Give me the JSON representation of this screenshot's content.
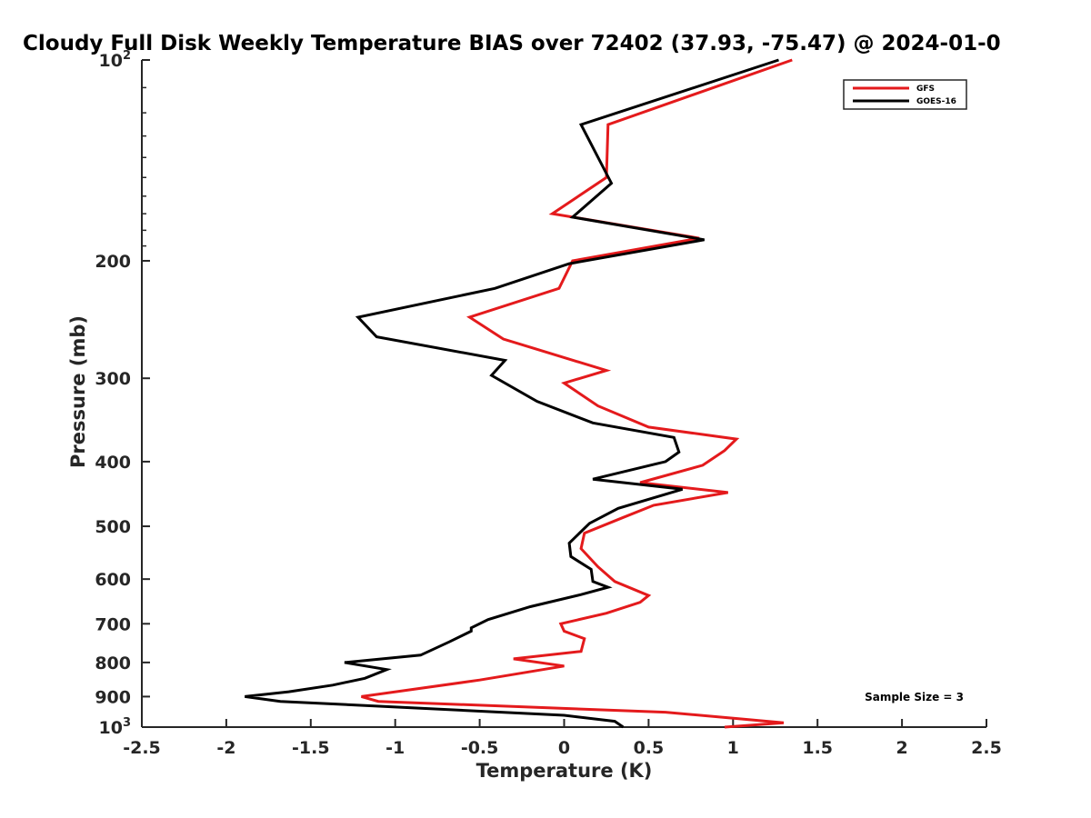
{
  "chart_data": {
    "type": "line",
    "title": "Cloudy Full Disk Weekly Temperature BIAS over 72402 (37.93, -75.47) @ 2024-01-0",
    "xlabel": "Temperature (K)",
    "ylabel": "Pressure (mb)",
    "xlim": [
      -2.5,
      2.5
    ],
    "ylim": [
      100,
      1000
    ],
    "yscale": "log",
    "yreversed": true,
    "grid": false,
    "legend_position": "top-right",
    "x_ticks": [
      {
        "value": -2.5,
        "label": "-2.5"
      },
      {
        "value": -2,
        "label": "-2"
      },
      {
        "value": -1.5,
        "label": "-1.5"
      },
      {
        "value": -1,
        "label": "-1"
      },
      {
        "value": -0.5,
        "label": "-0.5"
      },
      {
        "value": 0,
        "label": "0"
      },
      {
        "value": 0.5,
        "label": "0.5"
      },
      {
        "value": 1,
        "label": "1"
      },
      {
        "value": 1.5,
        "label": "1.5"
      },
      {
        "value": 2,
        "label": "2"
      },
      {
        "value": 2.5,
        "label": "2.5"
      }
    ],
    "y_ticks": [
      {
        "value": 100,
        "label": "10",
        "exp": "2"
      },
      {
        "value": 200,
        "label": "200"
      },
      {
        "value": 300,
        "label": "300"
      },
      {
        "value": 400,
        "label": "400"
      },
      {
        "value": 500,
        "label": "500"
      },
      {
        "value": 600,
        "label": "600"
      },
      {
        "value": 700,
        "label": "700"
      },
      {
        "value": 800,
        "label": "800"
      },
      {
        "value": 900,
        "label": "900"
      },
      {
        "value": 1000,
        "label": "10",
        "exp": "3"
      }
    ],
    "series": [
      {
        "name": "GFS",
        "color": "#e41a1c",
        "points": [
          [
            1.35,
            100
          ],
          [
            0.26,
            125
          ],
          [
            0.25,
            150
          ],
          [
            -0.07,
            170
          ],
          [
            0.8,
            185
          ],
          [
            0.05,
            200
          ],
          [
            -0.03,
            220
          ],
          [
            -0.56,
            243
          ],
          [
            -0.36,
            262
          ],
          [
            0.25,
            292
          ],
          [
            0.0,
            305
          ],
          [
            0.2,
            330
          ],
          [
            0.5,
            355
          ],
          [
            1.02,
            370
          ],
          [
            0.95,
            385
          ],
          [
            0.82,
            405
          ],
          [
            0.45,
            430
          ],
          [
            0.97,
            445
          ],
          [
            0.53,
            465
          ],
          [
            0.35,
            485
          ],
          [
            0.12,
            512
          ],
          [
            0.1,
            540
          ],
          [
            0.2,
            575
          ],
          [
            0.3,
            605
          ],
          [
            0.5,
            635
          ],
          [
            0.45,
            650
          ],
          [
            0.25,
            675
          ],
          [
            -0.02,
            700
          ],
          [
            0.0,
            718
          ],
          [
            0.12,
            737
          ],
          [
            0.1,
            770
          ],
          [
            -0.3,
            790
          ],
          [
            0.0,
            810
          ],
          [
            -0.5,
            850
          ],
          [
            -1.2,
            900
          ],
          [
            -1.1,
            915
          ],
          [
            0.6,
            950
          ],
          [
            1.1,
            975
          ],
          [
            1.3,
            985
          ],
          [
            0.95,
            1000
          ]
        ]
      },
      {
        "name": "GOES-16",
        "color": "#000000",
        "points": [
          [
            1.27,
            100
          ],
          [
            0.1,
            125
          ],
          [
            0.28,
            153
          ],
          [
            0.05,
            172
          ],
          [
            0.83,
            186
          ],
          [
            0.03,
            202
          ],
          [
            -0.41,
            220
          ],
          [
            -1.22,
            243
          ],
          [
            -1.11,
            260
          ],
          [
            -0.35,
            282
          ],
          [
            -0.43,
            297
          ],
          [
            -0.16,
            325
          ],
          [
            0.17,
            350
          ],
          [
            0.65,
            368
          ],
          [
            0.68,
            387
          ],
          [
            0.6,
            400
          ],
          [
            0.17,
            425
          ],
          [
            0.7,
            440
          ],
          [
            0.32,
            470
          ],
          [
            0.15,
            495
          ],
          [
            0.03,
            530
          ],
          [
            0.04,
            555
          ],
          [
            0.16,
            580
          ],
          [
            0.17,
            605
          ],
          [
            0.26,
            617
          ],
          [
            0.1,
            633
          ],
          [
            -0.2,
            660
          ],
          [
            -0.45,
            690
          ],
          [
            -0.55,
            710
          ],
          [
            -0.55,
            718
          ],
          [
            -0.68,
            745
          ],
          [
            -0.85,
            780
          ],
          [
            -1.3,
            800
          ],
          [
            -1.05,
            820
          ],
          [
            -1.18,
            845
          ],
          [
            -1.37,
            865
          ],
          [
            -1.63,
            885
          ],
          [
            -1.89,
            900
          ],
          [
            -1.68,
            915
          ],
          [
            0.0,
            960
          ],
          [
            0.3,
            980
          ],
          [
            0.35,
            1000
          ]
        ]
      }
    ],
    "annotation": "Sample Size = 3"
  }
}
